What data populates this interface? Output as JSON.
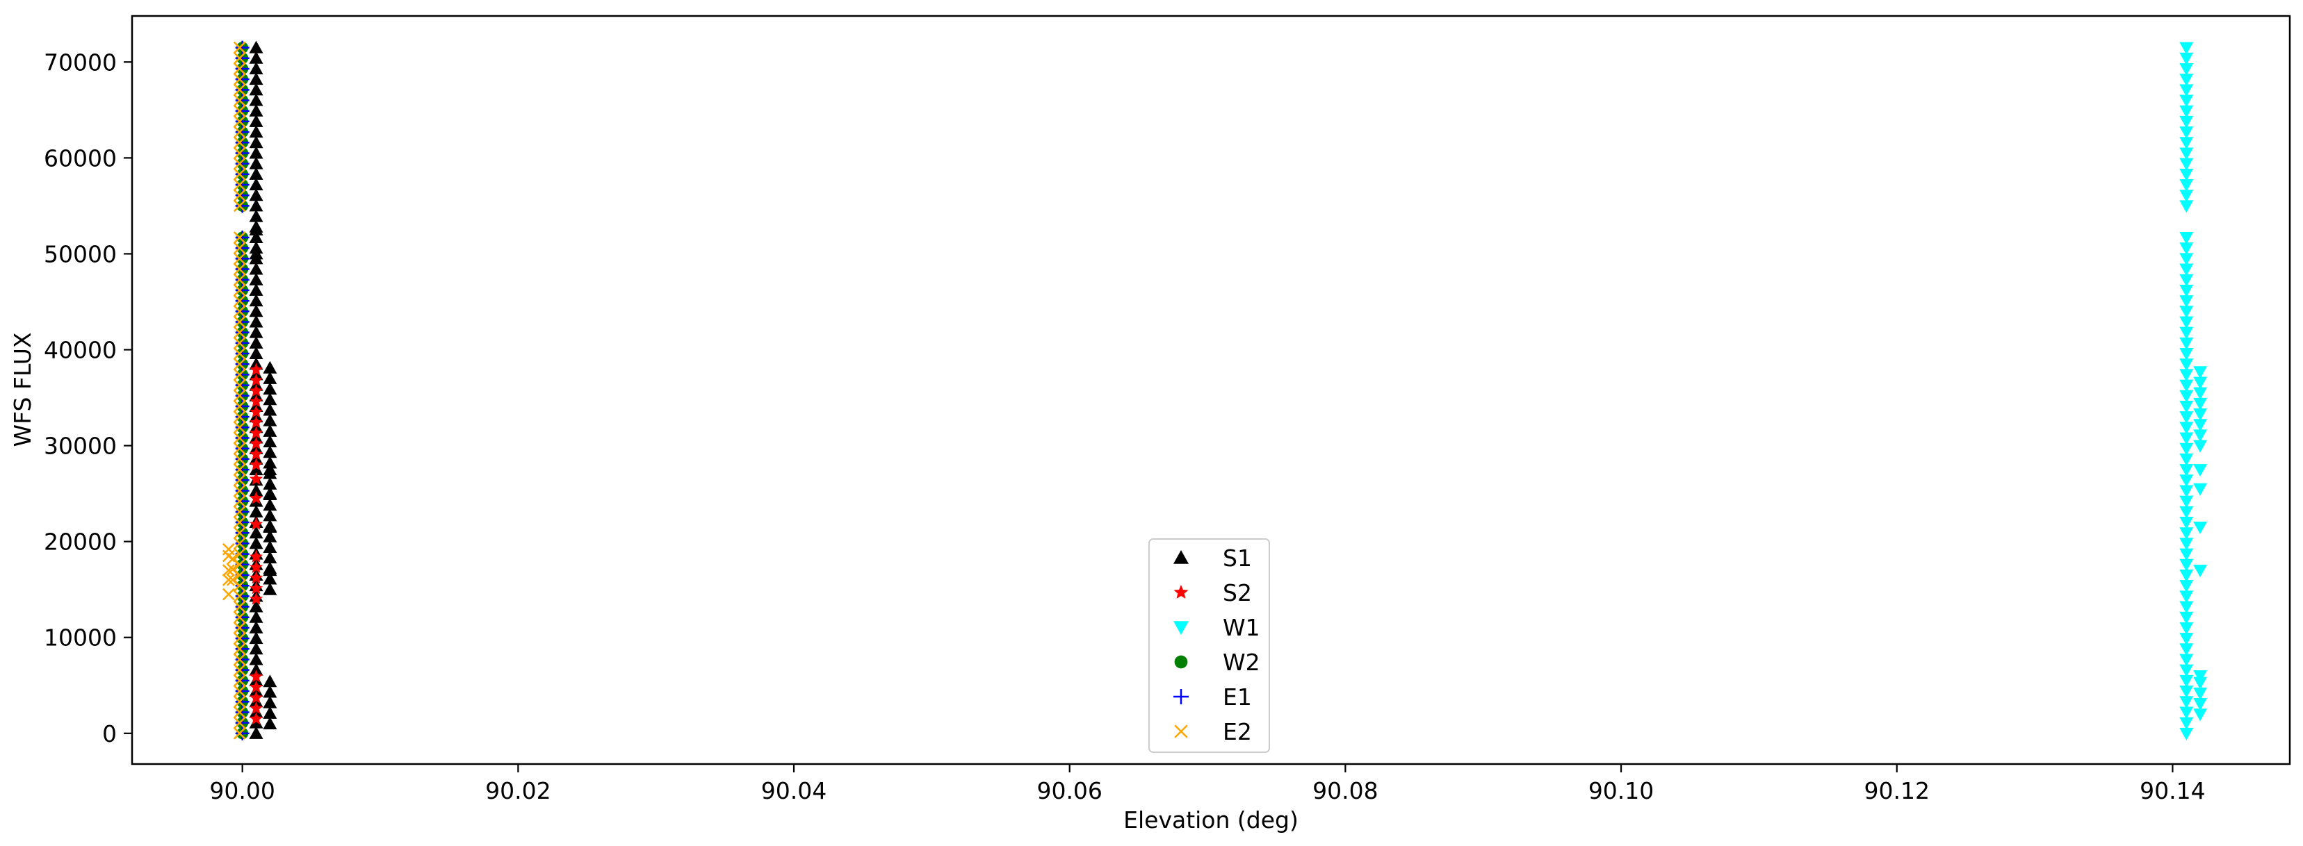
{
  "chart_data": {
    "type": "scatter",
    "xlabel": "Elevation (deg)",
    "ylabel": "WFS FLUX",
    "xlim": [
      89.992,
      90.1485
    ],
    "ylim": [
      -3200,
      74800
    ],
    "xticks": [
      {
        "value": 90.0,
        "label": "90.00"
      },
      {
        "value": 90.02,
        "label": "90.02"
      },
      {
        "value": 90.04,
        "label": "90.04"
      },
      {
        "value": 90.06,
        "label": "90.06"
      },
      {
        "value": 90.08,
        "label": "90.08"
      },
      {
        "value": 90.1,
        "label": "90.10"
      },
      {
        "value": 90.12,
        "label": "90.12"
      },
      {
        "value": 90.14,
        "label": "90.14"
      }
    ],
    "yticks": [
      {
        "value": 0,
        "label": "0"
      },
      {
        "value": 10000,
        "label": "10000"
      },
      {
        "value": 20000,
        "label": "20000"
      },
      {
        "value": 30000,
        "label": "30000"
      },
      {
        "value": 40000,
        "label": "40000"
      },
      {
        "value": 50000,
        "label": "50000"
      },
      {
        "value": 60000,
        "label": "60000"
      },
      {
        "value": 70000,
        "label": "70000"
      }
    ],
    "grid": false,
    "legend_position": "lower-center",
    "series": [
      {
        "name": "S1",
        "marker": "triangle-up",
        "color": "#000000",
        "clusters": [
          {
            "x": 90.001,
            "y_from": 0,
            "y_to": 71500
          },
          {
            "x": 90.002,
            "y_from": 1000,
            "y_to": 6000
          },
          {
            "x": 90.002,
            "y_from": 15000,
            "y_to": 38500
          }
        ],
        "points": [
          [
            90.002,
            21500
          ],
          [
            90.002,
            17000
          ],
          [
            90.002,
            25000
          ],
          [
            90.002,
            27500
          ],
          [
            90.001,
            52500
          ],
          [
            90.001,
            50000
          ]
        ]
      },
      {
        "name": "S2",
        "marker": "star",
        "color": "#ff0000",
        "clusters": [
          {
            "x": 90.001,
            "y_from": 1500,
            "y_to": 6000
          },
          {
            "x": 90.001,
            "y_from": 14000,
            "y_to": 19000
          },
          {
            "x": 90.001,
            "y_from": 28000,
            "y_to": 38500
          }
        ],
        "points": [
          [
            90.001,
            21800
          ],
          [
            90.001,
            24500
          ],
          [
            90.001,
            26500
          ]
        ]
      },
      {
        "name": "W1",
        "marker": "triangle-down",
        "color": "#00ffff",
        "clusters": [
          {
            "x": 90.141,
            "y_from": 0,
            "y_to": 52500
          },
          {
            "x": 90.141,
            "y_from": 55000,
            "y_to": 71500
          },
          {
            "x": 90.142,
            "y_from": 2000,
            "y_to": 5500
          },
          {
            "x": 90.142,
            "y_from": 30000,
            "y_to": 38500
          }
        ],
        "points": [
          [
            90.142,
            21500
          ],
          [
            90.142,
            17000
          ],
          [
            90.142,
            25500
          ],
          [
            90.142,
            27500
          ],
          [
            90.142,
            6000
          ]
        ]
      },
      {
        "name": "W2",
        "marker": "circle",
        "color": "#008000",
        "clusters": [
          {
            "x": 90.0,
            "y_from": 0,
            "y_to": 52500
          },
          {
            "x": 90.0,
            "y_from": 55000,
            "y_to": 71500
          }
        ],
        "points": []
      },
      {
        "name": "E1",
        "marker": "plus",
        "color": "#0000ff",
        "clusters": [
          {
            "x": 90.0,
            "y_from": 0,
            "y_to": 52500
          },
          {
            "x": 90.0,
            "y_from": 55000,
            "y_to": 71500
          }
        ],
        "points": []
      },
      {
        "name": "E2",
        "marker": "x",
        "color": "#ffa500",
        "clusters": [
          {
            "x": 89.9998,
            "y_from": 0,
            "y_to": 52500
          },
          {
            "x": 89.9998,
            "y_from": 55000,
            "y_to": 71500
          },
          {
            "x": 89.9993,
            "y_from": 16000,
            "y_to": 19000
          }
        ],
        "points": [
          [
            89.999,
            14500
          ],
          [
            89.999,
            17000
          ],
          [
            89.999,
            18500
          ],
          [
            89.999,
            19200
          ],
          [
            89.999,
            16000
          ]
        ]
      }
    ]
  }
}
